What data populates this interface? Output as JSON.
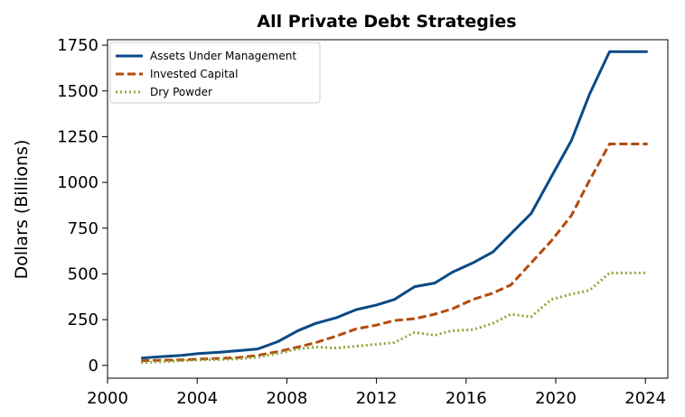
{
  "chart_data": {
    "type": "line",
    "title": "All Private Debt Strategies",
    "xlabel": "",
    "ylabel": "Dollars (Billions)",
    "xlim": [
      2000,
      2025
    ],
    "ylim": [
      -70,
      1780
    ],
    "x_ticks": [
      2000,
      2004,
      2008,
      2012,
      2016,
      2020,
      2024
    ],
    "y_ticks": [
      0,
      250,
      500,
      750,
      1000,
      1250,
      1500,
      1750
    ],
    "grid": false,
    "legend_position": "top-left",
    "series": [
      {
        "name": "Assets Under Management",
        "color": "#0b4a85",
        "style": "solid",
        "x": [
          2001.5,
          2002.4,
          2003.3,
          2004.1,
          2005.0,
          2005.8,
          2006.7,
          2007.6,
          2008.5,
          2009.3,
          2010.2,
          2011.1,
          2012.0,
          2012.8,
          2013.7,
          2014.6,
          2015.4,
          2016.3,
          2017.2,
          2018.0,
          2018.9,
          2019.8,
          2020.7,
          2021.5,
          2022.4,
          2023.3,
          2024.1
        ],
        "values": [
          40,
          48,
          55,
          65,
          72,
          80,
          90,
          130,
          190,
          230,
          260,
          305,
          330,
          360,
          430,
          450,
          510,
          560,
          620,
          720,
          830,
          1030,
          1230,
          1480,
          1715,
          1715,
          1715
        ]
      },
      {
        "name": "Invested Capital",
        "color": "#b34a0c",
        "style": "dashed",
        "x": [
          2001.5,
          2002.4,
          2003.3,
          2004.1,
          2005.0,
          2005.8,
          2006.7,
          2007.6,
          2008.5,
          2009.3,
          2010.2,
          2011.1,
          2012.0,
          2012.8,
          2013.7,
          2014.6,
          2015.4,
          2016.3,
          2017.2,
          2018.0,
          2018.9,
          2019.8,
          2020.7,
          2021.5,
          2022.4,
          2023.3,
          2024.1
        ],
        "values": [
          25,
          28,
          30,
          34,
          38,
          42,
          55,
          75,
          100,
          125,
          160,
          200,
          220,
          245,
          255,
          280,
          310,
          360,
          395,
          440,
          560,
          680,
          820,
          1010,
          1210,
          1210,
          1210
        ]
      },
      {
        "name": "Dry Powder",
        "color": "#8fa83a",
        "style": "dotted",
        "x": [
          2001.5,
          2002.4,
          2003.3,
          2004.1,
          2005.0,
          2005.8,
          2006.7,
          2007.6,
          2008.5,
          2009.3,
          2010.2,
          2011.1,
          2012.0,
          2012.8,
          2013.7,
          2014.6,
          2015.4,
          2016.3,
          2017.2,
          2018.0,
          2018.9,
          2019.8,
          2020.7,
          2021.5,
          2022.4,
          2023.3,
          2024.1
        ],
        "values": [
          15,
          20,
          25,
          30,
          32,
          35,
          45,
          65,
          90,
          100,
          95,
          105,
          115,
          125,
          180,
          165,
          190,
          195,
          230,
          280,
          265,
          360,
          390,
          410,
          505,
          505,
          505
        ]
      }
    ]
  }
}
